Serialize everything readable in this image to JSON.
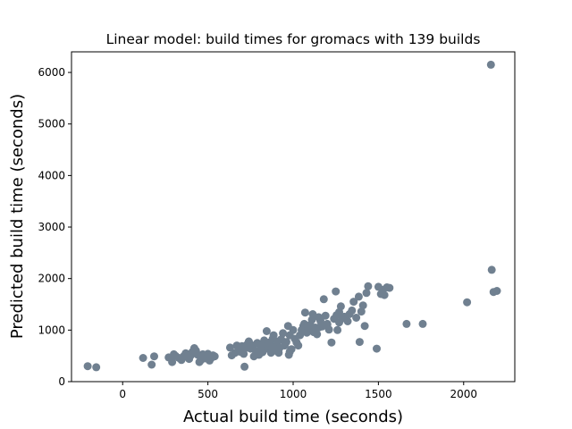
{
  "chart_data": {
    "type": "scatter",
    "title": "Linear model: build times for gromacs with 139 builds",
    "xlabel": "Actual build time (seconds)",
    "ylabel": "Predicted build time (seconds)",
    "xlim": [
      -300,
      2300
    ],
    "ylim": [
      0,
      6400
    ],
    "xticks": [
      0,
      500,
      1000,
      1500,
      2000
    ],
    "yticks": [
      0,
      1000,
      2000,
      3000,
      4000,
      5000,
      6000
    ],
    "grid": false,
    "marker_color": "#708090",
    "points": [
      [
        -205,
        300
      ],
      [
        -155,
        280
      ],
      [
        120,
        460
      ],
      [
        170,
        330
      ],
      [
        185,
        490
      ],
      [
        270,
        470
      ],
      [
        290,
        380
      ],
      [
        300,
        530
      ],
      [
        310,
        500
      ],
      [
        330,
        460
      ],
      [
        345,
        420
      ],
      [
        360,
        500
      ],
      [
        370,
        550
      ],
      [
        380,
        480
      ],
      [
        390,
        440
      ],
      [
        400,
        510
      ],
      [
        410,
        580
      ],
      [
        420,
        650
      ],
      [
        430,
        600
      ],
      [
        440,
        520
      ],
      [
        450,
        380
      ],
      [
        460,
        470
      ],
      [
        470,
        530
      ],
      [
        480,
        500
      ],
      [
        490,
        450
      ],
      [
        500,
        540
      ],
      [
        510,
        410
      ],
      [
        520,
        460
      ],
      [
        530,
        510
      ],
      [
        540,
        490
      ],
      [
        630,
        660
      ],
      [
        640,
        510
      ],
      [
        660,
        560
      ],
      [
        670,
        700
      ],
      [
        680,
        620
      ],
      [
        690,
        580
      ],
      [
        700,
        690
      ],
      [
        710,
        540
      ],
      [
        715,
        290
      ],
      [
        720,
        650
      ],
      [
        730,
        720
      ],
      [
        740,
        780
      ],
      [
        750,
        640
      ],
      [
        760,
        700
      ],
      [
        770,
        490
      ],
      [
        780,
        600
      ],
      [
        790,
        750
      ],
      [
        800,
        520
      ],
      [
        810,
        660
      ],
      [
        820,
        720
      ],
      [
        830,
        800
      ],
      [
        840,
        640
      ],
      [
        845,
        980
      ],
      [
        850,
        700
      ],
      [
        860,
        760
      ],
      [
        870,
        560
      ],
      [
        880,
        830
      ],
      [
        885,
        900
      ],
      [
        890,
        680
      ],
      [
        900,
        600
      ],
      [
        905,
        720
      ],
      [
        910,
        780
      ],
      [
        915,
        560
      ],
      [
        920,
        650
      ],
      [
        930,
        820
      ],
      [
        940,
        940
      ],
      [
        950,
        700
      ],
      [
        960,
        770
      ],
      [
        970,
        1080
      ],
      [
        975,
        520
      ],
      [
        980,
        900
      ],
      [
        990,
        630
      ],
      [
        1000,
        1000
      ],
      [
        1010,
        830
      ],
      [
        1020,
        760
      ],
      [
        1030,
        700
      ],
      [
        1040,
        900
      ],
      [
        1050,
        1000
      ],
      [
        1060,
        1080
      ],
      [
        1065,
        1120
      ],
      [
        1070,
        1340
      ],
      [
        1080,
        950
      ],
      [
        1090,
        1060
      ],
      [
        1100,
        1100
      ],
      [
        1110,
        1200
      ],
      [
        1115,
        1310
      ],
      [
        1120,
        960
      ],
      [
        1130,
        1050
      ],
      [
        1140,
        920
      ],
      [
        1150,
        1250
      ],
      [
        1160,
        1180
      ],
      [
        1170,
        1070
      ],
      [
        1180,
        1600
      ],
      [
        1190,
        1280
      ],
      [
        1200,
        1120
      ],
      [
        1210,
        1010
      ],
      [
        1225,
        760
      ],
      [
        1240,
        1220
      ],
      [
        1250,
        1750
      ],
      [
        1255,
        1290
      ],
      [
        1260,
        1000
      ],
      [
        1270,
        1150
      ],
      [
        1280,
        1460
      ],
      [
        1290,
        1230
      ],
      [
        1300,
        1260
      ],
      [
        1320,
        1170
      ],
      [
        1330,
        1310
      ],
      [
        1345,
        1380
      ],
      [
        1355,
        1550
      ],
      [
        1370,
        1240
      ],
      [
        1385,
        1650
      ],
      [
        1390,
        770
      ],
      [
        1400,
        1360
      ],
      [
        1410,
        1480
      ],
      [
        1420,
        1080
      ],
      [
        1430,
        1720
      ],
      [
        1440,
        1850
      ],
      [
        1490,
        640
      ],
      [
        1500,
        1840
      ],
      [
        1515,
        1700
      ],
      [
        1525,
        1780
      ],
      [
        1535,
        1680
      ],
      [
        1550,
        1830
      ],
      [
        1565,
        1820
      ],
      [
        1665,
        1120
      ],
      [
        1760,
        1120
      ],
      [
        2020,
        1540
      ],
      [
        2160,
        6150
      ],
      [
        2165,
        2170
      ],
      [
        2175,
        1740
      ],
      [
        2195,
        1760
      ],
      [
        980,
        580
      ],
      [
        1150,
        1050
      ],
      [
        1200,
        1100
      ],
      [
        750,
        720
      ],
      [
        880,
        650
      ],
      [
        1270,
        1350
      ],
      [
        820,
        570
      ],
      [
        460,
        420
      ]
    ]
  }
}
